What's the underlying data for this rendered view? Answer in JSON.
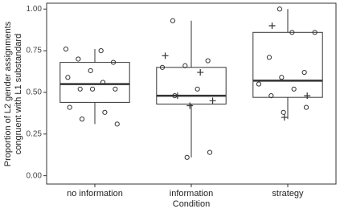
{
  "chart_data": {
    "type": "boxplot",
    "x_label": "Condition",
    "y_label": [
      "Proportion of L2 gender assignments",
      "congruent with L1 substandard"
    ],
    "categories": [
      "no information",
      "information",
      "strategy"
    ],
    "boxes": [
      {
        "whisker_low": 0.31,
        "q1": 0.44,
        "median": 0.55,
        "q3": 0.68,
        "whisker_high": 0.76
      },
      {
        "whisker_low": 0.11,
        "q1": 0.43,
        "median": 0.48,
        "q3": 0.65,
        "whisker_high": 0.93
      },
      {
        "whisker_low": 0.34,
        "q1": 0.47,
        "median": 0.57,
        "q3": 0.86,
        "whisker_high": 1.0
      }
    ],
    "points": [
      {
        "shape": "circle",
        "values": [
          [
            0.76,
            0.75,
            0.7,
            0.68,
            0.63,
            0.59,
            0.56,
            0.52,
            0.52,
            0.52,
            0.41,
            0.38,
            0.34,
            0.31
          ],
          [
            0.93,
            0.69,
            0.66,
            0.65,
            0.52,
            0.48,
            0.14,
            0.11
          ],
          [
            1.0,
            0.86,
            0.86,
            0.71,
            0.62,
            0.59,
            0.55,
            0.52,
            0.48,
            0.41,
            0.38
          ]
        ]
      },
      {
        "shape": "plus",
        "values": [
          [],
          [
            0.72,
            0.62,
            0.48,
            0.45,
            0.42
          ],
          [
            0.9,
            0.48,
            0.35
          ]
        ]
      }
    ],
    "ylim": [
      -0.05,
      1.035
    ],
    "yticks": [
      {
        "value": 0,
        "label": "0.00"
      },
      {
        "value": 0.25,
        "label": "0.25"
      },
      {
        "value": 0.5,
        "label": "0.50"
      },
      {
        "value": 0.75,
        "label": "0.75"
      },
      {
        "value": 1,
        "label": "1.00"
      }
    ],
    "color": "#333333"
  }
}
